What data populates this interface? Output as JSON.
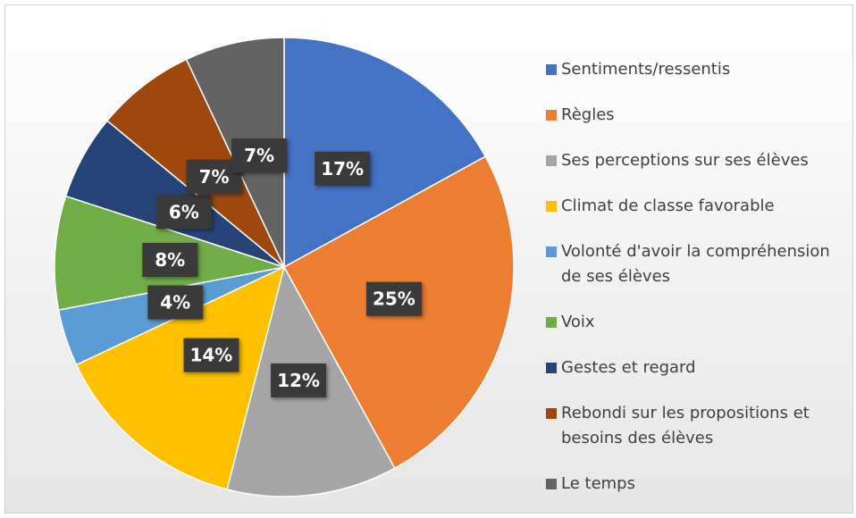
{
  "chart_data": {
    "type": "pie",
    "categories": [
      "Sentiments/ressentis",
      "Règles",
      "Ses perceptions sur ses élèves",
      "Climat de classe favorable",
      "Volonté d'avoir la compréhension de ses élèves",
      "Voix",
      "Gestes et regard",
      "Rebondi sur les propositions et besoins des élèves",
      "Le temps"
    ],
    "values": [
      17,
      25,
      12,
      14,
      4,
      8,
      6,
      7,
      7
    ],
    "value_labels": [
      "17%",
      "25%",
      "12%",
      "14%",
      "4%",
      "8%",
      "6%",
      "7%",
      "7%"
    ],
    "colors": [
      "#4472C4",
      "#ED7D31",
      "#A5A5A5",
      "#FFC000",
      "#5B9BD5",
      "#70AD47",
      "#264478",
      "#9E480E",
      "#636363"
    ],
    "legend": "right"
  }
}
